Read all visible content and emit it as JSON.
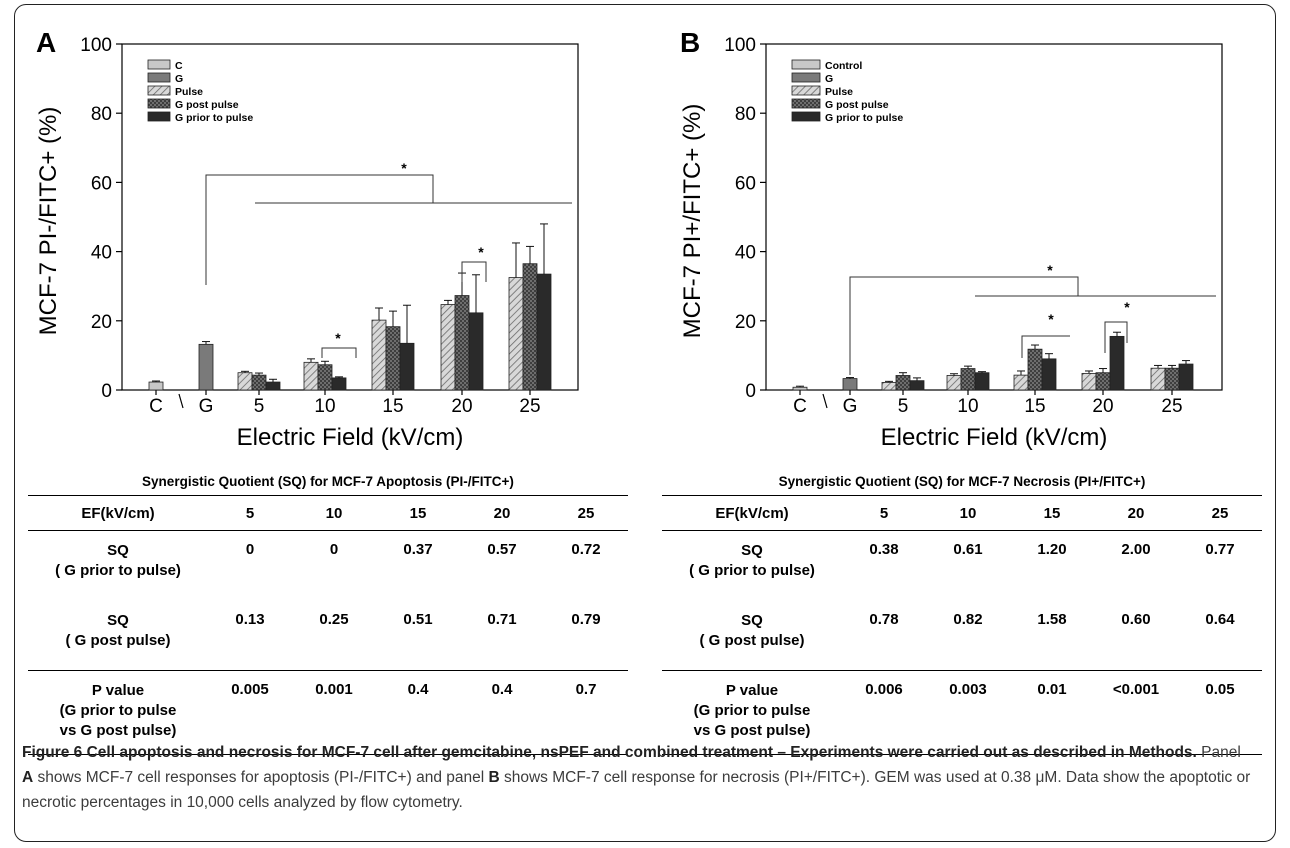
{
  "colors": {
    "c": "#c8c8c8",
    "g": "#7a7a7a",
    "pulse": "#bcbcbc",
    "post": "#5a5a5a",
    "prior": "#2a2a2a"
  },
  "axis": {
    "xlabel": "Electric Field (kV/cm)",
    "ticks": [
      "0",
      "20",
      "40",
      "60",
      "80",
      "100"
    ]
  },
  "chart_data": [
    {
      "panel": "A",
      "type": "bar",
      "ylabel": "MCF-7  PI-/FITC+ (%)",
      "xlabel": "Electric Field (kV/cm)",
      "ylim": [
        0,
        100
      ],
      "categories": [
        "C",
        "G",
        "5",
        "10",
        "15",
        "20",
        "25"
      ],
      "legend": [
        "C",
        "G",
        "Pulse",
        "G post pulse",
        "G prior to pulse"
      ],
      "series": [
        {
          "name": "C",
          "values": [
            2.3,
            null,
            null,
            null,
            null,
            null,
            null
          ],
          "err": [
            0.3,
            null,
            null,
            null,
            null,
            null,
            null
          ]
        },
        {
          "name": "G",
          "values": [
            null,
            13.2,
            null,
            null,
            null,
            null,
            null
          ],
          "err": [
            null,
            0.8,
            null,
            null,
            null,
            null,
            null
          ]
        },
        {
          "name": "Pulse",
          "values": [
            null,
            null,
            5,
            8,
            20.2,
            24.7,
            32.5
          ],
          "err": [
            null,
            null,
            0.4,
            1,
            3.5,
            1.2,
            10
          ]
        },
        {
          "name": "G post pulse",
          "values": [
            null,
            null,
            4.3,
            7.3,
            18.3,
            27.3,
            36.5
          ],
          "err": [
            null,
            null,
            0.6,
            1,
            4.5,
            6.5,
            5
          ]
        },
        {
          "name": "G prior to pulse",
          "values": [
            null,
            null,
            2.3,
            3.5,
            13.5,
            22.3,
            33.5
          ],
          "err": [
            null,
            null,
            0.8,
            0.3,
            11,
            11,
            14.5
          ]
        }
      ],
      "annotations": [
        "*",
        "*",
        "*"
      ]
    },
    {
      "panel": "B",
      "type": "bar",
      "ylabel": "MCF-7 PI+/FITC+ (%)",
      "xlabel": "Electric Field (kV/cm)",
      "ylim": [
        0,
        100
      ],
      "categories": [
        "C",
        "G",
        "5",
        "10",
        "15",
        "20",
        "25"
      ],
      "legend": [
        "Control",
        "G",
        "Pulse",
        "G post pulse",
        "G prior to pulse"
      ],
      "series": [
        {
          "name": "Control",
          "values": [
            0.8,
            null,
            null,
            null,
            null,
            null,
            null
          ],
          "err": [
            0.3,
            null,
            null,
            null,
            null,
            null,
            null
          ]
        },
        {
          "name": "G",
          "values": [
            null,
            3.3,
            null,
            null,
            null,
            null,
            null
          ],
          "err": [
            null,
            0.3,
            null,
            null,
            null,
            null,
            null
          ]
        },
        {
          "name": "Pulse",
          "values": [
            null,
            null,
            2.2,
            4.2,
            4.3,
            4.8,
            6.3
          ],
          "err": [
            null,
            null,
            0.3,
            0.5,
            1.2,
            0.7,
            0.8
          ]
        },
        {
          "name": "G post pulse",
          "values": [
            null,
            null,
            4.2,
            6.2,
            11.8,
            5,
            6.3
          ],
          "err": [
            null,
            null,
            0.8,
            0.7,
            1.2,
            1.2,
            0.8
          ]
        },
        {
          "name": "G prior to pulse",
          "values": [
            null,
            null,
            2.7,
            5,
            9,
            15.5,
            7.5
          ],
          "err": [
            null,
            null,
            0.8,
            0.3,
            1.5,
            1.2,
            1
          ]
        }
      ],
      "annotations": [
        "*",
        "*",
        "*"
      ]
    }
  ],
  "tables": {
    "a": {
      "title": "Synergistic Quotient (SQ) for MCF-7 Apoptosis (PI-/FITC+)",
      "headers": [
        "EF(kV/cm)",
        "5",
        "10",
        "15",
        "20",
        "25"
      ],
      "rows": [
        {
          "l1": "SQ",
          "l2": "( G prior to pulse)",
          "l3": "",
          "vals": [
            "0",
            "0",
            "0.37",
            "0.57",
            "0.72"
          ]
        },
        {
          "l1": "SQ",
          "l2": "( G post pulse)",
          "l3": "",
          "vals": [
            "0.13",
            "0.25",
            "0.51",
            "0.71",
            "0.79"
          ]
        },
        {
          "l1": "P value",
          "l2": "(G prior to pulse",
          "l3": "vs G post pulse)",
          "vals": [
            "0.005",
            "0.001",
            "0.4",
            "0.4",
            "0.7"
          ]
        }
      ]
    },
    "b": {
      "title": "Synergistic Quotient (SQ) for MCF-7 Necrosis (PI+/FITC+)",
      "headers": [
        "EF(kV/cm)",
        "5",
        "10",
        "15",
        "20",
        "25"
      ],
      "rows": [
        {
          "l1": "SQ",
          "l2": "( G prior to pulse)",
          "l3": "",
          "vals": [
            "0.38",
            "0.61",
            "1.20",
            "2.00",
            "0.77"
          ]
        },
        {
          "l1": "SQ",
          "l2": "( G post pulse)",
          "l3": "",
          "vals": [
            "0.78",
            "0.82",
            "1.58",
            "0.60",
            "0.64"
          ]
        },
        {
          "l1": "P value",
          "l2": "(G prior to pulse",
          "l3": "vs G post pulse)",
          "vals": [
            "0.006",
            "0.003",
            "0.01",
            "<0.001",
            "0.05"
          ]
        }
      ]
    }
  },
  "caption": {
    "bold1": "Figure 6 Cell apoptosis and necrosis for MCF-7 cell after gemcitabine, nsPEF and combined treatment – Experiments were carried out as described in Methods.",
    "t1": " Panel ",
    "bA": "A",
    "t2": " shows MCF-7 cell responses for apoptosis (PI-/FITC+) and panel ",
    "bB": "B",
    "t3": " shows MCF-7 cell response for necrosis (PI+/FITC+). GEM was used at 0.38 μM. Data show the apoptotic or necrotic percentages in 10,000 cells analyzed by flow cytometry."
  }
}
